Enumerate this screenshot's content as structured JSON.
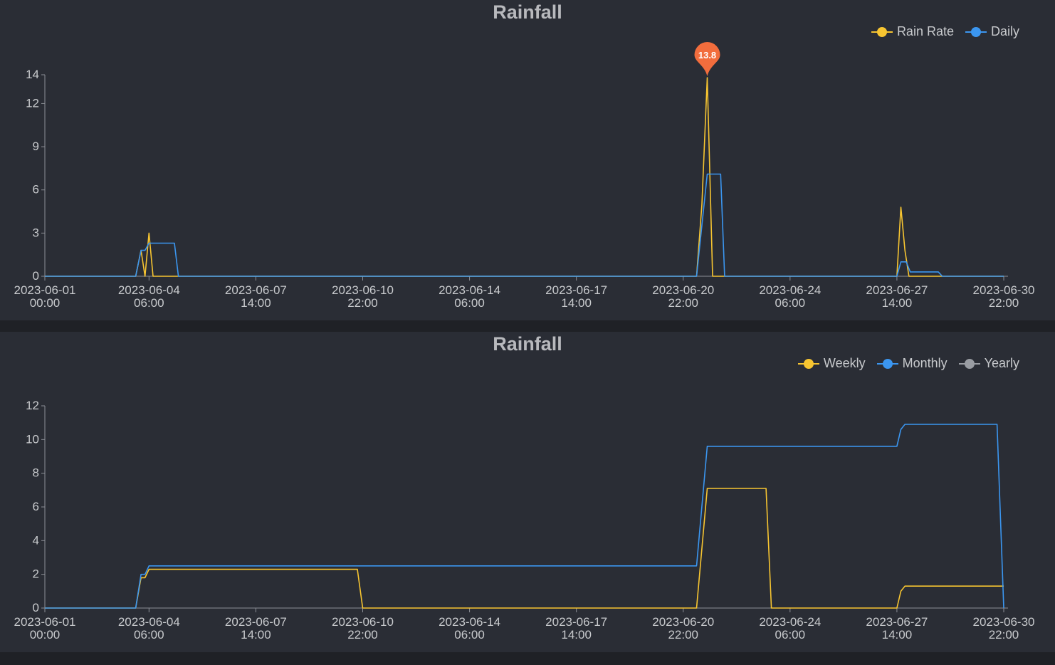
{
  "chart_data": [
    {
      "type": "line",
      "title": "Rainfall",
      "xlabel": "",
      "ylabel": "",
      "xlim": [
        "2023-06-01 00:00",
        "2023-06-30 22:00"
      ],
      "ylim": [
        0,
        14
      ],
      "yticks": [
        "0",
        "3",
        "6",
        "9",
        "12",
        "14"
      ],
      "xticks": [
        {
          "date": "2023-06-01",
          "time": "00:00"
        },
        {
          "date": "2023-06-04",
          "time": "06:00"
        },
        {
          "date": "2023-06-07",
          "time": "14:00"
        },
        {
          "date": "2023-06-10",
          "time": "22:00"
        },
        {
          "date": "2023-06-14",
          "time": "06:00"
        },
        {
          "date": "2023-06-17",
          "time": "14:00"
        },
        {
          "date": "2023-06-20",
          "time": "22:00"
        },
        {
          "date": "2023-06-24",
          "time": "06:00"
        },
        {
          "date": "2023-06-27",
          "time": "14:00"
        },
        {
          "date": "2023-06-30",
          "time": "22:00"
        }
      ],
      "legend_position": "top-right",
      "grid": false,
      "series": [
        {
          "name": "Rain Rate",
          "color": "#f7c531",
          "points": [
            [
              "2023-06-01 00:00",
              0
            ],
            [
              "2023-06-03 20:00",
              0
            ],
            [
              "2023-06-04 00:00",
              1.8
            ],
            [
              "2023-06-04 03:00",
              0
            ],
            [
              "2023-06-04 06:00",
              3.0
            ],
            [
              "2023-06-04 09:00",
              0
            ],
            [
              "2023-06-21 08:00",
              0
            ],
            [
              "2023-06-21 12:00",
              5.0
            ],
            [
              "2023-06-21 16:00",
              13.8
            ],
            [
              "2023-06-21 20:00",
              0
            ],
            [
              "2023-06-27 14:00",
              0
            ],
            [
              "2023-06-27 17:00",
              4.8
            ],
            [
              "2023-06-27 20:00",
              1.8
            ],
            [
              "2023-06-27 23:00",
              0
            ],
            [
              "2023-06-30 22:00",
              0
            ]
          ]
        },
        {
          "name": "Daily",
          "color": "#3b96f0",
          "points": [
            [
              "2023-06-01 00:00",
              0
            ],
            [
              "2023-06-03 20:00",
              0
            ],
            [
              "2023-06-04 00:00",
              1.8
            ],
            [
              "2023-06-04 03:00",
              1.8
            ],
            [
              "2023-06-04 06:00",
              2.3
            ],
            [
              "2023-06-05 01:00",
              2.3
            ],
            [
              "2023-06-05 04:00",
              0
            ],
            [
              "2023-06-21 08:00",
              0
            ],
            [
              "2023-06-21 16:00",
              7.1
            ],
            [
              "2023-06-22 02:00",
              7.1
            ],
            [
              "2023-06-22 05:00",
              0
            ],
            [
              "2023-06-27 14:00",
              0
            ],
            [
              "2023-06-27 17:00",
              1.0
            ],
            [
              "2023-06-27 21:00",
              1.0
            ],
            [
              "2023-06-28 00:00",
              0.3
            ],
            [
              "2023-06-28 21:00",
              0.3
            ],
            [
              "2023-06-29 00:00",
              0
            ],
            [
              "2023-06-30 22:00",
              0
            ]
          ]
        }
      ],
      "annotations": [
        {
          "type": "max-marker",
          "series": "Rain Rate",
          "label": "13.8",
          "x": "2023-06-21 16:00",
          "y": 13.8,
          "color": "#f26d3d"
        }
      ]
    },
    {
      "type": "line",
      "title": "Rainfall",
      "xlabel": "",
      "ylabel": "",
      "xlim": [
        "2023-06-01 00:00",
        "2023-06-30 22:00"
      ],
      "ylim": [
        0,
        12
      ],
      "yticks": [
        "0",
        "2",
        "4",
        "6",
        "8",
        "10",
        "12"
      ],
      "xticks": [
        {
          "date": "2023-06-01",
          "time": "00:00"
        },
        {
          "date": "2023-06-04",
          "time": "06:00"
        },
        {
          "date": "2023-06-07",
          "time": "14:00"
        },
        {
          "date": "2023-06-10",
          "time": "22:00"
        },
        {
          "date": "2023-06-14",
          "time": "06:00"
        },
        {
          "date": "2023-06-17",
          "time": "14:00"
        },
        {
          "date": "2023-06-20",
          "time": "22:00"
        },
        {
          "date": "2023-06-24",
          "time": "06:00"
        },
        {
          "date": "2023-06-27",
          "time": "14:00"
        },
        {
          "date": "2023-06-30",
          "time": "22:00"
        }
      ],
      "legend_position": "top-right",
      "grid": false,
      "series": [
        {
          "name": "Weekly",
          "color": "#f7c531",
          "points": [
            [
              "2023-06-01 00:00",
              0
            ],
            [
              "2023-06-03 20:00",
              0
            ],
            [
              "2023-06-04 00:00",
              1.8
            ],
            [
              "2023-06-04 03:00",
              1.8
            ],
            [
              "2023-06-04 06:00",
              2.3
            ],
            [
              "2023-06-10 18:00",
              2.3
            ],
            [
              "2023-06-10 22:00",
              0
            ],
            [
              "2023-06-21 08:00",
              0
            ],
            [
              "2023-06-21 16:00",
              7.1
            ],
            [
              "2023-06-23 12:00",
              7.1
            ],
            [
              "2023-06-23 16:00",
              0
            ],
            [
              "2023-06-27 14:00",
              0
            ],
            [
              "2023-06-27 17:00",
              1.0
            ],
            [
              "2023-06-27 20:00",
              1.3
            ],
            [
              "2023-06-30 22:00",
              1.3
            ]
          ]
        },
        {
          "name": "Monthly",
          "color": "#3b96f0",
          "points": [
            [
              "2023-06-01 00:00",
              0
            ],
            [
              "2023-06-03 20:00",
              0
            ],
            [
              "2023-06-04 00:00",
              2.0
            ],
            [
              "2023-06-04 03:00",
              2.0
            ],
            [
              "2023-06-04 06:00",
              2.5
            ],
            [
              "2023-06-21 08:00",
              2.5
            ],
            [
              "2023-06-21 16:00",
              9.6
            ],
            [
              "2023-06-27 14:00",
              9.6
            ],
            [
              "2023-06-27 17:00",
              10.6
            ],
            [
              "2023-06-27 20:00",
              10.9
            ],
            [
              "2023-06-30 17:00",
              10.9
            ],
            [
              "2023-06-30 22:00",
              0
            ]
          ]
        },
        {
          "name": "Yearly",
          "color": "#9a9da3",
          "points": []
        }
      ]
    }
  ]
}
